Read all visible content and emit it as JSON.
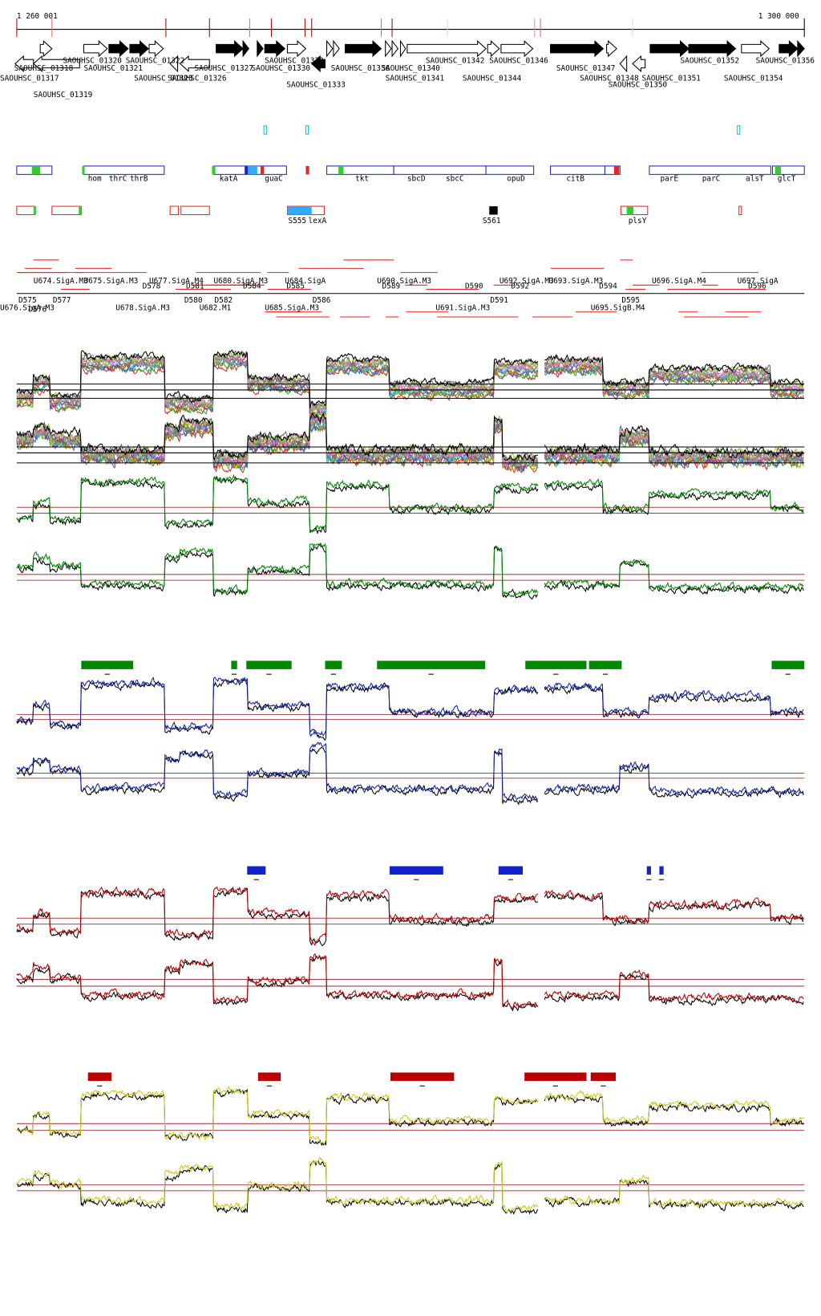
{
  "ruler": {
    "start": "1 260 001",
    "end": "1 300 000"
  },
  "genes": [
    "SAOUHSC_01318",
    "SAOUHSC_01320",
    "SAOUHSC_01322",
    "SAOUHSC_01317",
    "SAOUHSC_01321",
    "SAOUHSC_01323",
    "SAOUHSC_01326",
    "SAOUHSC_01327",
    "SAOUHSC_01330",
    "SAOUHSC_01332",
    "SAOUHSC_01333",
    "SAOUHSC_01336",
    "SAOUHSC_01340",
    "SAOUHSC_01341",
    "SAOUHSC_01342",
    "SAOUHSC_01344",
    "SAOUHSC_01346",
    "SAOUHSC_01347",
    "SAOUHSC_01348",
    "SAOUHSC_01350",
    "SAOUHSC_01351",
    "SAOUHSC_01352",
    "SAOUHSC_01354",
    "SAOUHSC_01356",
    "SAOUHSC_01319"
  ],
  "gene_names": [
    "hom",
    "thrC",
    "thrB",
    "katA",
    "guaC",
    "tkt",
    "sbcD",
    "sbcC",
    "opuD",
    "citB",
    "parE",
    "parC",
    "alsT",
    "glcT"
  ],
  "features": [
    "S555",
    "lexA",
    "S561",
    "plsY"
  ],
  "units": [
    "U674.SigA.M3",
    "U675.SigA.M3",
    "U677.SigA.M4",
    "U680.SigA.M3",
    "U684.SigA",
    "U690.SigA.M3",
    "U692.SigA.M3",
    "U693.SigA.M3",
    "U696.SigA.M4",
    "U697.SigA",
    "D575",
    "D576",
    "D577",
    "D578",
    "D580",
    "D581",
    "D582",
    "D584",
    "D585",
    "D586",
    "D589",
    "D590",
    "D591",
    "D592",
    "D594",
    "D595",
    "D596",
    "U676.SigA.M3",
    "U678.SigA.M3",
    "U682.M1",
    "U685.SigA.M3",
    "U691.SigA.M3",
    "U695.SigB.M4"
  ]
}
